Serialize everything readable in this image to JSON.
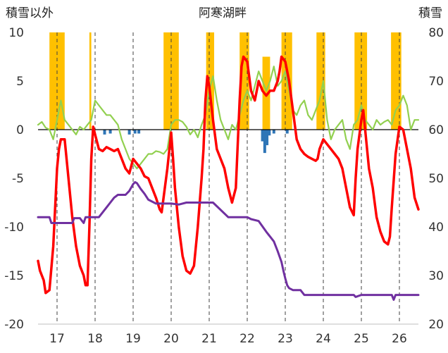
{
  "chart_data": {
    "type": "line",
    "title": "阿寒湖畔",
    "ylabel_left": "積雪以外",
    "ylabel_right": "積雪",
    "x_ticks": [
      "17",
      "18",
      "19",
      "20",
      "21",
      "22",
      "23",
      "24",
      "25",
      "26"
    ],
    "xlim": [
      16.5,
      26.5
    ],
    "ylim_left": [
      -20,
      10
    ],
    "ylim_right": [
      20,
      80
    ],
    "y_ticks_left": [
      10,
      5,
      0,
      -5,
      -10,
      -15,
      -20
    ],
    "y_ticks_right": [
      80,
      70,
      60,
      50,
      40,
      30,
      20
    ],
    "grid": "vertical dashed at integer x",
    "colors": {
      "snow_bars": "#FFC000",
      "blue_bars": "#2E75B6",
      "red": "#FF0000",
      "green": "#92D050",
      "purple": "#7030A0",
      "zero_line": "#000000",
      "grid": "#404040"
    },
    "snow_depth_right_axis": [
      {
        "x0": 16.8,
        "x1": 17.2,
        "y": 80
      },
      {
        "x0": 17.85,
        "x1": 17.9,
        "y": 80
      },
      {
        "x0": 19.8,
        "x1": 20.2,
        "y": 80
      },
      {
        "x0": 20.92,
        "x1": 21.13,
        "y": 80
      },
      {
        "x0": 21.8,
        "x1": 22.05,
        "y": 80
      },
      {
        "x0": 22.4,
        "x1": 22.6,
        "y": 75
      },
      {
        "x0": 22.9,
        "x1": 23.18,
        "y": 80
      },
      {
        "x0": 23.82,
        "x1": 24.05,
        "y": 80
      },
      {
        "x0": 24.82,
        "x1": 25.15,
        "y": 80
      },
      {
        "x0": 25.78,
        "x1": 26.05,
        "y": 80
      }
    ],
    "negative_bars_left_axis": [
      {
        "x": 18.25,
        "y": -0.5
      },
      {
        "x": 18.4,
        "y": -0.4
      },
      {
        "x": 18.9,
        "y": -0.5
      },
      {
        "x": 19.05,
        "y": -0.4
      },
      {
        "x": 19.15,
        "y": -0.4
      },
      {
        "x": 22.4,
        "y": -1.2
      },
      {
        "x": 22.46,
        "y": -2.4
      },
      {
        "x": 22.52,
        "y": -1.6
      },
      {
        "x": 22.58,
        "y": -0.6
      },
      {
        "x": 22.7,
        "y": -0.4
      },
      {
        "x": 23.05,
        "y": -0.4
      }
    ],
    "series": [
      {
        "color": "red",
        "x": [
          16.5,
          16.55,
          16.6,
          16.65,
          16.7,
          16.8,
          16.9,
          17.0,
          17.05,
          17.1,
          17.2,
          17.3,
          17.4,
          17.5,
          17.6,
          17.7,
          17.75,
          17.8,
          17.85,
          17.9,
          17.95,
          18.0,
          18.1,
          18.2,
          18.3,
          18.4,
          18.5,
          18.6,
          18.7,
          18.8,
          18.9,
          19.0,
          19.1,
          19.2,
          19.3,
          19.4,
          19.5,
          19.6,
          19.7,
          19.75,
          19.8,
          19.9,
          20.0,
          20.05,
          20.1,
          20.2,
          20.3,
          20.4,
          20.5,
          20.6,
          20.7,
          20.8,
          20.85,
          20.9,
          20.95,
          21.0,
          21.1,
          21.2,
          21.3,
          21.4,
          21.5,
          21.6,
          21.7,
          21.8,
          21.85,
          21.9,
          22.0,
          22.1,
          22.2,
          22.3,
          22.4,
          22.5,
          22.6,
          22.7,
          22.8,
          22.85,
          22.9,
          23.0,
          23.1,
          23.2,
          23.3,
          23.4,
          23.5,
          23.6,
          23.7,
          23.8,
          23.85,
          23.9,
          24.0,
          24.1,
          24.2,
          24.3,
          24.4,
          24.5,
          24.6,
          24.7,
          24.8,
          24.85,
          24.9,
          25.0,
          25.05,
          25.1,
          25.2,
          25.3,
          25.4,
          25.5,
          25.6,
          25.7,
          25.75,
          25.8,
          25.9,
          26.0,
          26.1,
          26.2,
          26.3,
          26.4,
          26.5
        ],
        "y": [
          -13.5,
          -14.5,
          -15.0,
          -15.5,
          -16.8,
          -16.5,
          -12,
          -4,
          -2,
          -1,
          -1,
          -5,
          -9,
          -12,
          -14,
          -15,
          -16,
          -16,
          -10,
          -3,
          0.3,
          -0.5,
          -2,
          -2.2,
          -1.8,
          -2,
          -2.2,
          -2,
          -3,
          -4,
          -4.5,
          -3,
          -3.5,
          -4,
          -4.8,
          -5,
          -6,
          -7,
          -8.2,
          -8.5,
          -7,
          -4,
          -0.3,
          -3,
          -6,
          -10,
          -13,
          -14.5,
          -14.8,
          -14,
          -10,
          -5,
          -2,
          3,
          5.5,
          4.5,
          1,
          -2,
          -3,
          -4,
          -6,
          -7.5,
          -6,
          3,
          6.5,
          7.5,
          7,
          4,
          3,
          5,
          4,
          3.5,
          4,
          4,
          5,
          6,
          7.5,
          7,
          5,
          2,
          -1,
          -2,
          -2.5,
          -2.8,
          -3,
          -3.2,
          -3,
          -2,
          -1,
          -1.5,
          -2,
          -2.5,
          -3,
          -4,
          -6,
          -8,
          -8.8,
          -5,
          -2,
          1,
          2,
          0,
          -4,
          -6,
          -9,
          -10.5,
          -11.5,
          -11.8,
          -11,
          -8,
          -2.5,
          0.3,
          0,
          -2,
          -4,
          -7,
          -8.2
        ]
      },
      {
        "color": "green",
        "x": [
          16.5,
          16.6,
          16.7,
          16.8,
          16.9,
          17.0,
          17.1,
          17.2,
          17.3,
          17.4,
          17.5,
          17.6,
          17.7,
          17.8,
          17.9,
          18.0,
          18.1,
          18.2,
          18.3,
          18.4,
          18.5,
          18.6,
          18.7,
          18.8,
          18.9,
          19.0,
          19.1,
          19.2,
          19.3,
          19.4,
          19.5,
          19.6,
          19.7,
          19.8,
          19.9,
          20.0,
          20.1,
          20.2,
          20.3,
          20.4,
          20.5,
          20.6,
          20.7,
          20.8,
          20.9,
          21.0,
          21.1,
          21.2,
          21.3,
          21.4,
          21.5,
          21.6,
          21.7,
          21.8,
          21.9,
          22.0,
          22.1,
          22.2,
          22.3,
          22.4,
          22.5,
          22.6,
          22.7,
          22.8,
          22.9,
          23.0,
          23.1,
          23.2,
          23.3,
          23.4,
          23.5,
          23.6,
          23.7,
          23.8,
          23.9,
          24.0,
          24.1,
          24.2,
          24.3,
          24.4,
          24.5,
          24.6,
          24.7,
          24.8,
          24.9,
          25.0,
          25.1,
          25.2,
          25.3,
          25.4,
          25.5,
          25.6,
          25.7,
          25.8,
          25.9,
          26.0,
          26.1,
          26.2,
          26.3,
          26.4,
          26.5
        ],
        "y": [
          0.5,
          0.8,
          0.2,
          0,
          -1,
          1,
          3,
          1,
          0.5,
          0,
          -0.5,
          0.3,
          0,
          0.5,
          1,
          3,
          2.5,
          2,
          1.5,
          1.5,
          1,
          0.5,
          -1,
          -2,
          -3,
          -3.5,
          -4,
          -3.5,
          -3,
          -2.5,
          -2.5,
          -2.2,
          -2.3,
          -2.5,
          -2,
          0.5,
          1,
          1,
          0.8,
          0.3,
          -0.5,
          0,
          -0.8,
          0.5,
          1.5,
          4,
          5.5,
          3,
          1,
          0,
          -1,
          0.5,
          0,
          1.5,
          3,
          4,
          3,
          4.5,
          6,
          5,
          4,
          5,
          6.5,
          4.5,
          5,
          6,
          4,
          2,
          1.5,
          2.5,
          3,
          1.5,
          1,
          2,
          3,
          5,
          1,
          -1,
          0,
          0.5,
          1,
          -1,
          -2,
          0.5,
          1,
          2.5,
          1,
          0.5,
          0,
          1,
          0.5,
          0.8,
          1,
          0.5,
          2,
          2.5,
          3.5,
          2.5,
          0,
          1,
          1
        ]
      },
      {
        "color": "purple",
        "x": [
          16.5,
          16.8,
          16.85,
          17.2,
          17.4,
          17.45,
          17.6,
          17.7,
          17.75,
          17.9,
          18.0,
          18.1,
          18.2,
          18.3,
          18.4,
          18.5,
          18.6,
          18.7,
          18.8,
          18.9,
          19.0,
          19.05,
          19.1,
          19.2,
          19.3,
          19.4,
          19.5,
          19.6,
          19.7,
          19.8,
          20.0,
          20.2,
          20.4,
          20.6,
          20.8,
          21.0,
          21.05,
          21.1,
          21.5,
          21.8,
          22.0,
          22.1,
          22.3,
          22.5,
          22.7,
          22.8,
          22.9,
          22.95,
          23.0,
          23.05,
          23.1,
          23.2,
          23.3,
          23.4,
          23.5,
          24.0,
          24.5,
          24.8,
          24.85,
          25.0,
          25.5,
          25.8,
          25.85,
          25.9,
          26.0,
          26.5
        ],
        "y": [
          -9,
          -9,
          -9.6,
          -9.6,
          -9.6,
          -9.1,
          -9.1,
          -9.6,
          -9,
          -9,
          -9,
          -9,
          -8.5,
          -8,
          -7.5,
          -7,
          -6.7,
          -6.7,
          -6.7,
          -6.3,
          -5.6,
          -5.4,
          -5.5,
          -6.1,
          -6.6,
          -7.2,
          -7.4,
          -7.6,
          -7.6,
          -7.6,
          -7.6,
          -7.7,
          -7.5,
          -7.5,
          -7.5,
          -7.5,
          -7.5,
          -7.5,
          -9,
          -9,
          -9,
          -9.2,
          -9.4,
          -10.5,
          -11.5,
          -12.5,
          -13.6,
          -14.5,
          -15.3,
          -16.0,
          -16.3,
          -16.5,
          -16.5,
          -16.5,
          -17,
          -17,
          -17,
          -17,
          -17.2,
          -17,
          -17,
          -17,
          -17.5,
          -17,
          -17,
          -17
        ]
      }
    ]
  }
}
